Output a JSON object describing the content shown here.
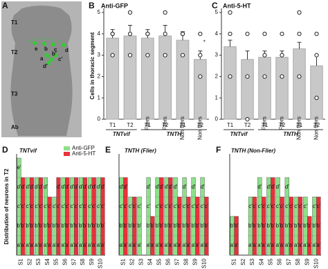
{
  "panel_a": {
    "panel": "A",
    "segments": [
      "T1",
      "T2",
      "T3",
      "Ab"
    ],
    "dot_labels": [
      "e",
      "b",
      "c",
      "d",
      "a",
      "b'",
      "c'",
      "d'"
    ]
  },
  "chart_data": [
    {
      "type": "bar",
      "panel": "B",
      "title": "Anti-GFP",
      "y_label": "Cells in thoracic segment",
      "groups": [
        {
          "name": "TNTvif",
          "categories": [
            "T1",
            "T2"
          ]
        },
        {
          "name": "TNTH",
          "categories": [
            "T1",
            "T2",
            "T1",
            "T2"
          ]
        }
      ],
      "values": [
        3.8,
        3.9,
        3.8,
        3.9,
        3.7,
        2.8
      ],
      "errors": [
        0.4,
        0.5,
        0.4,
        0.5,
        0.4,
        0.4
      ],
      "points": [
        [
          4,
          4,
          3
        ],
        [
          5,
          4,
          3
        ],
        [
          4,
          4,
          3
        ],
        [
          5,
          4,
          3
        ],
        [
          4,
          4,
          3
        ],
        [
          4,
          3,
          2
        ]
      ],
      "bar_labels": [
        null,
        null,
        "Fliers",
        "Fliers",
        "Non fliers",
        "Non fliers"
      ],
      "bar_annotations": [
        null,
        null,
        null,
        null,
        null,
        "*"
      ],
      "color": "#c8c8c8",
      "ylim": [
        0,
        5
      ],
      "yticks": [
        0,
        1,
        2,
        3,
        4,
        5
      ]
    },
    {
      "type": "bar",
      "panel": "C",
      "title": "Anti-5-HT",
      "groups": [
        {
          "name": "TNTvif",
          "categories": [
            "T1",
            "T2"
          ]
        },
        {
          "name": "TNTH",
          "categories": [
            "T1",
            "T2",
            "T1",
            "T2"
          ]
        }
      ],
      "values": [
        3.4,
        2.8,
        2.9,
        2.9,
        3.3,
        2.5
      ],
      "errors": [
        0.3,
        0.4,
        0.3,
        0.3,
        0.3,
        0.5
      ],
      "points": [
        [
          5,
          4,
          2
        ],
        [
          4,
          2,
          0
        ],
        [
          4,
          3,
          2
        ],
        [
          4,
          3,
          2
        ],
        [
          5,
          4,
          2
        ],
        [
          4,
          3,
          1
        ]
      ],
      "bar_labels": [
        null,
        null,
        "Fliers",
        "Fliers",
        "Non fliers",
        "Non fliers"
      ],
      "color": "#c8c8c8",
      "ylim": [
        0,
        5
      ],
      "yticks": [
        0,
        1,
        2,
        3,
        4,
        5
      ]
    },
    {
      "type": "segmented_bar",
      "panel": "D",
      "title": "TNTvif",
      "y_label": "Distribution of neurons in T2",
      "legend": true,
      "categories": [
        "S1",
        "S2",
        "S3",
        "S4",
        "S5",
        "S6",
        "S7",
        "S8",
        "S9",
        "S10"
      ],
      "segment_labels": [
        "a'",
        "b'",
        "c'",
        "d'",
        "e'"
      ],
      "series": [
        {
          "name": "Anti-GFP",
          "color": "#8ee08a",
          "values": [
            5,
            4,
            4,
            4,
            3,
            4,
            4,
            4,
            4,
            4
          ]
        },
        {
          "name": "Anti-5-HT",
          "color": "#e8323c",
          "values": [
            4,
            4,
            4,
            3,
            4,
            4,
            4,
            4,
            4,
            4
          ]
        }
      ],
      "ylim": [
        0,
        5
      ]
    },
    {
      "type": "segmented_bar",
      "panel": "E",
      "title": "TNTH (Flier)",
      "categories": [
        "S1",
        "S2",
        "S3",
        "S4",
        "S5",
        "S6",
        "S7",
        "S8",
        "S9",
        "S10"
      ],
      "segment_labels": [
        "a'",
        "b'",
        "c'",
        "d'",
        "e'"
      ],
      "series": [
        {
          "color": "#8ee08a",
          "values": [
            4,
            3,
            3,
            4,
            4,
            4,
            4,
            4,
            4,
            4
          ]
        },
        {
          "color": "#e8323c",
          "values": [
            4,
            3,
            0,
            2,
            4,
            4,
            3,
            3,
            3,
            3
          ]
        }
      ],
      "ylim": [
        0,
        5
      ]
    },
    {
      "type": "segmented_bar",
      "panel": "F",
      "title": "TNTH (Non-Flier)",
      "categories": [
        "S1",
        "S2",
        "S3",
        "S4",
        "S5",
        "S6",
        "S7",
        "S8",
        "S9",
        "S10"
      ],
      "segment_labels": [
        "a'",
        "b'",
        "c'",
        "d'",
        "e'"
      ],
      "series": [
        {
          "color": "#8ee08a",
          "values": [
            2,
            0,
            3,
            4,
            4,
            4,
            4,
            3,
            3,
            3
          ]
        },
        {
          "color": "#e8323c",
          "values": [
            2,
            0,
            3,
            3,
            4,
            3,
            3,
            3,
            2,
            3
          ]
        }
      ],
      "ylim": [
        0,
        5
      ]
    }
  ]
}
